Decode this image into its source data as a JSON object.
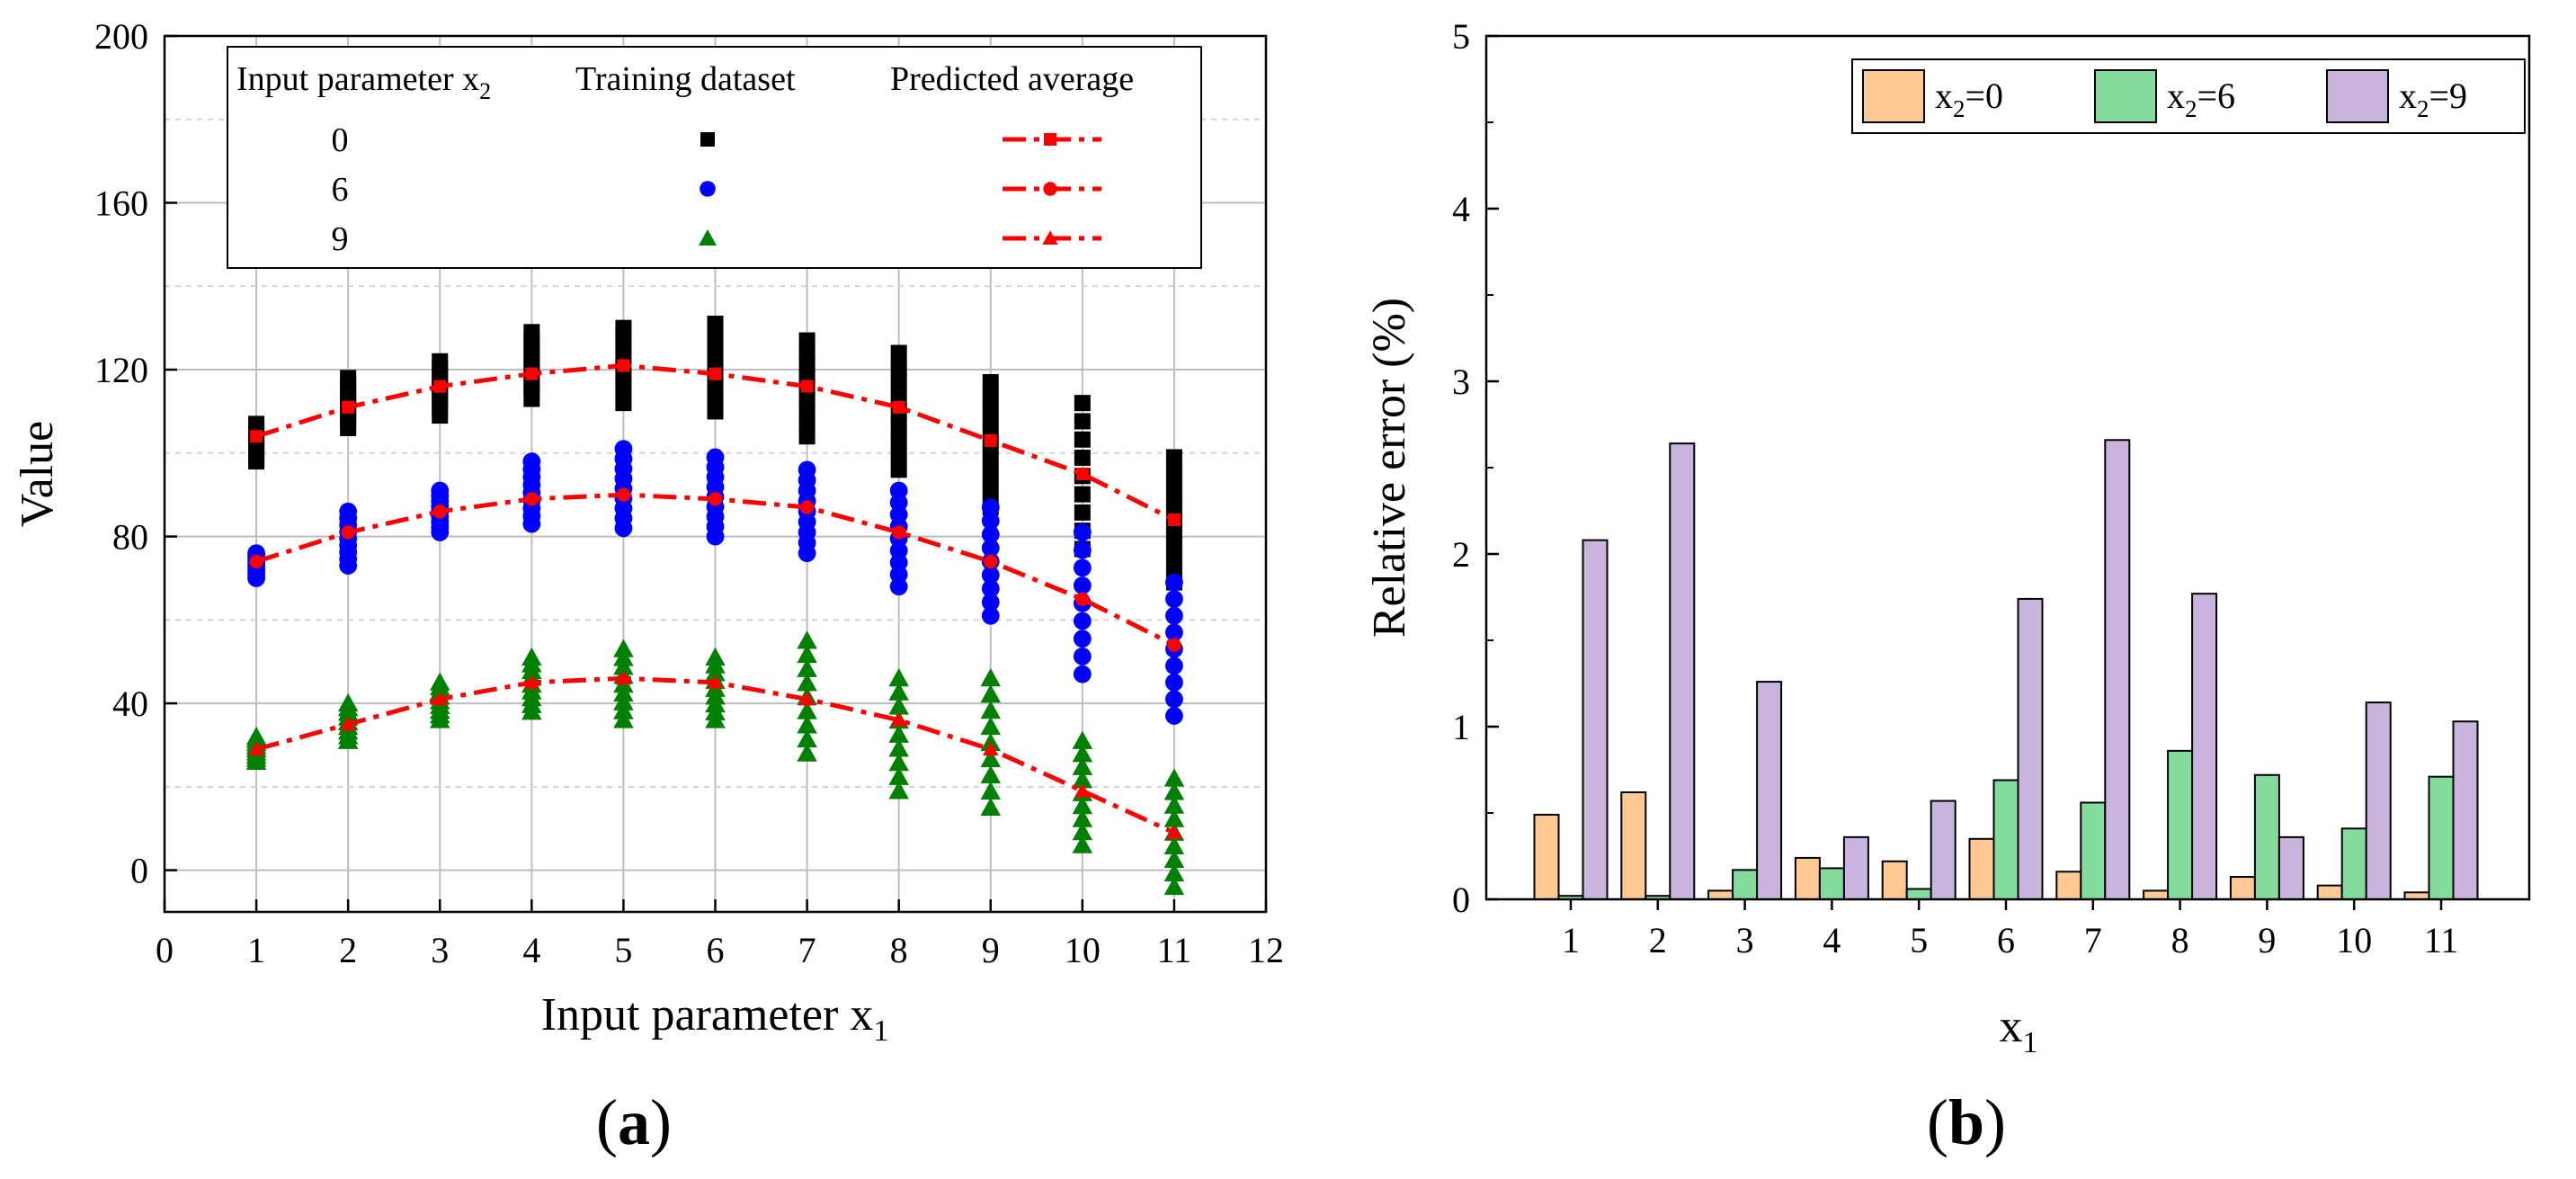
{
  "chart_data": [
    {
      "panel": "a",
      "panel_label": "a",
      "type": "scatter",
      "xlabel": "Input parameter x",
      "xlabel_sub": "1",
      "ylabel": "Value",
      "xlim": [
        0,
        12
      ],
      "ylim": [
        -10,
        200
      ],
      "xticks": [
        0,
        1,
        2,
        3,
        4,
        5,
        6,
        7,
        8,
        9,
        10,
        11,
        12
      ],
      "yticks": [
        0,
        40,
        80,
        120,
        160,
        200
      ],
      "grid": true,
      "legend": {
        "placement": "top",
        "header_param": "Input parameter x",
        "header_param_sub": "2",
        "header_train": "Training dataset",
        "header_pred": "Predicted average",
        "rows": [
          "0",
          "6",
          "9"
        ]
      },
      "series": [
        {
          "name": "0",
          "color": "#000000",
          "pred_color": "#ff0000",
          "marker": "square",
          "x": [
            1,
            2,
            3,
            4,
            5,
            6,
            7,
            8,
            9,
            10,
            11
          ],
          "train_min": [
            98,
            106,
            109,
            113,
            112,
            110,
            104,
            96,
            87,
            77,
            69
          ],
          "train_max": [
            107,
            118,
            122,
            129,
            130,
            131,
            127,
            124,
            117,
            112,
            99
          ],
          "predicted": [
            104,
            111,
            116,
            119,
            121,
            119,
            116,
            111,
            103,
            95,
            84
          ]
        },
        {
          "name": "6",
          "color": "#0000ff",
          "pred_color": "#ff0000",
          "marker": "circle",
          "x": [
            1,
            2,
            3,
            4,
            5,
            6,
            7,
            8,
            9,
            10,
            11
          ],
          "train_min": [
            70,
            73,
            81,
            83,
            82,
            80,
            76,
            68,
            61,
            47,
            37
          ],
          "train_max": [
            76,
            86,
            91,
            98,
            101,
            99,
            96,
            91,
            87,
            81,
            69
          ],
          "predicted": [
            74,
            81,
            86,
            89,
            90,
            89,
            87,
            81,
            74,
            65,
            54
          ]
        },
        {
          "name": "9",
          "color": "#008000",
          "pred_color": "#ff0000",
          "marker": "triangle",
          "x": [
            1,
            2,
            3,
            4,
            5,
            6,
            7,
            8,
            9,
            10,
            11
          ],
          "train_min": [
            26,
            31,
            36,
            38,
            36,
            36,
            28,
            19,
            15,
            6,
            -4
          ],
          "train_max": [
            32,
            40,
            45,
            51,
            53,
            51,
            55,
            46,
            46,
            31,
            22
          ],
          "predicted": [
            29,
            35,
            41,
            45,
            46,
            45,
            41,
            36,
            29,
            19,
            9
          ]
        }
      ]
    },
    {
      "panel": "b",
      "panel_label": "b",
      "type": "bar",
      "xlabel": "x",
      "xlabel_sub": "1",
      "ylabel": "Relative error (%)",
      "ylim": [
        0,
        5
      ],
      "yticks": [
        0,
        1,
        2,
        3,
        4,
        5
      ],
      "categories": [
        "1",
        "2",
        "3",
        "4",
        "5",
        "6",
        "7",
        "8",
        "9",
        "10",
        "11"
      ],
      "grid": false,
      "legend_placement": "top-right",
      "series": [
        {
          "name": "x",
          "sub": "2",
          "eq": "=0",
          "color": "#ffc996",
          "values": [
            0.49,
            0.62,
            0.05,
            0.24,
            0.22,
            0.35,
            0.16,
            0.05,
            0.13,
            0.08,
            0.04
          ]
        },
        {
          "name": "x",
          "sub": "2",
          "eq": "=6",
          "color": "#82dc9e",
          "values": [
            0.02,
            0.02,
            0.17,
            0.18,
            0.06,
            0.69,
            0.56,
            0.86,
            0.72,
            0.41,
            0.71
          ]
        },
        {
          "name": "x",
          "sub": "2",
          "eq": "=9",
          "color": "#c8b4dc",
          "values": [
            2.08,
            2.64,
            1.26,
            0.36,
            0.57,
            1.74,
            2.66,
            1.77,
            0.36,
            1.14,
            1.03
          ]
        }
      ]
    }
  ]
}
